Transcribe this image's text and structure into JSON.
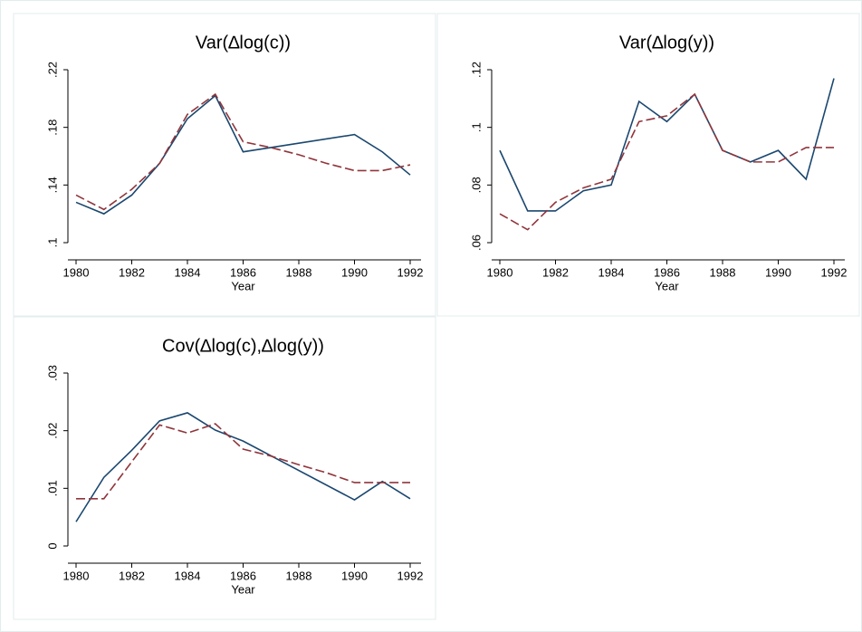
{
  "chart_data": [
    {
      "type": "line",
      "title": "Var(∆log(c))",
      "xlabel": "Year",
      "xlim": [
        1980,
        1992
      ],
      "xticks": [
        1980,
        1982,
        1984,
        1986,
        1988,
        1990,
        1992
      ],
      "ylim": [
        0.1,
        0.22
      ],
      "yticks": [
        {
          "value": 0.1,
          "label": ".1"
        },
        {
          "value": 0.14,
          "label": ".14"
        },
        {
          "value": 0.18,
          "label": ".18"
        },
        {
          "value": 0.22,
          "label": ".22"
        }
      ],
      "series": [
        {
          "color": "#1a476f",
          "dash": false,
          "x": [
            1980,
            1981,
            1982,
            1983,
            1984,
            1985,
            1986,
            1990,
            1991,
            1992
          ],
          "values": [
            0.128,
            0.12,
            0.133,
            0.155,
            0.186,
            0.202,
            0.163,
            0.175,
            0.163,
            0.147
          ]
        },
        {
          "color": "#90353b",
          "dash": true,
          "x": [
            1980,
            1981,
            1982,
            1983,
            1984,
            1985,
            1986,
            1987,
            1988,
            1989,
            1990,
            1991,
            1992
          ],
          "values": [
            0.133,
            0.123,
            0.137,
            0.155,
            0.189,
            0.203,
            0.17,
            0.166,
            0.161,
            0.155,
            0.15,
            0.15,
            0.154
          ]
        }
      ]
    },
    {
      "type": "line",
      "title": "Var(∆log(y))",
      "xlabel": "Year",
      "xlim": [
        1980,
        1992
      ],
      "xticks": [
        1980,
        1982,
        1984,
        1986,
        1988,
        1990,
        1992
      ],
      "ylim": [
        0.06,
        0.12
      ],
      "yticks": [
        {
          "value": 0.06,
          "label": ".06"
        },
        {
          "value": 0.08,
          "label": ".08"
        },
        {
          "value": 0.1,
          "label": ".1"
        },
        {
          "value": 0.12,
          "label": ".12"
        }
      ],
      "series": [
        {
          "color": "#1a476f",
          "dash": false,
          "x": [
            1980,
            1981,
            1982,
            1983,
            1984,
            1985,
            1986,
            1987,
            1988,
            1989,
            1990,
            1991,
            1992
          ],
          "values": [
            0.092,
            0.071,
            0.071,
            0.078,
            0.08,
            0.109,
            0.102,
            0.1115,
            0.092,
            0.088,
            0.092,
            0.082,
            0.117
          ]
        },
        {
          "color": "#90353b",
          "dash": true,
          "x": [
            1980,
            1981,
            1982,
            1983,
            1984,
            1985,
            1986,
            1987,
            1988,
            1989,
            1990,
            1991,
            1992
          ],
          "values": [
            0.07,
            0.0645,
            0.074,
            0.079,
            0.082,
            0.102,
            0.104,
            0.1115,
            0.092,
            0.088,
            0.088,
            0.093,
            0.093
          ]
        }
      ]
    },
    {
      "type": "line",
      "title": "Cov(∆log(c),∆log(y))",
      "xlabel": "Year",
      "xlim": [
        1980,
        1992
      ],
      "xticks": [
        1980,
        1982,
        1984,
        1986,
        1988,
        1990,
        1992
      ],
      "ylim": [
        0,
        0.03
      ],
      "yticks": [
        0,
        {
          "value": 0.01,
          "label": ".01"
        },
        {
          "value": 0.02,
          "label": ".02"
        },
        {
          "value": 0.03,
          "label": ".03"
        }
      ],
      "series": [
        {
          "color": "#1a476f",
          "dash": false,
          "x": [
            1980,
            1981,
            1982,
            1983,
            1984,
            1985,
            1986,
            1990,
            1991,
            1992
          ],
          "values": [
            0.0042,
            0.0119,
            0.0166,
            0.0217,
            0.0231,
            0.0201,
            0.0182,
            0.008,
            0.0112,
            0.0082
          ]
        },
        {
          "color": "#90353b",
          "dash": true,
          "x": [
            1980,
            1981,
            1982,
            1983,
            1984,
            1985,
            1986,
            1987,
            1988,
            1989,
            1990,
            1991,
            1992
          ],
          "values": [
            0.0082,
            0.0082,
            0.0146,
            0.021,
            0.0196,
            0.0212,
            0.0168,
            0.0156,
            0.0141,
            0.0127,
            0.011,
            0.011,
            0.011
          ]
        }
      ]
    }
  ]
}
